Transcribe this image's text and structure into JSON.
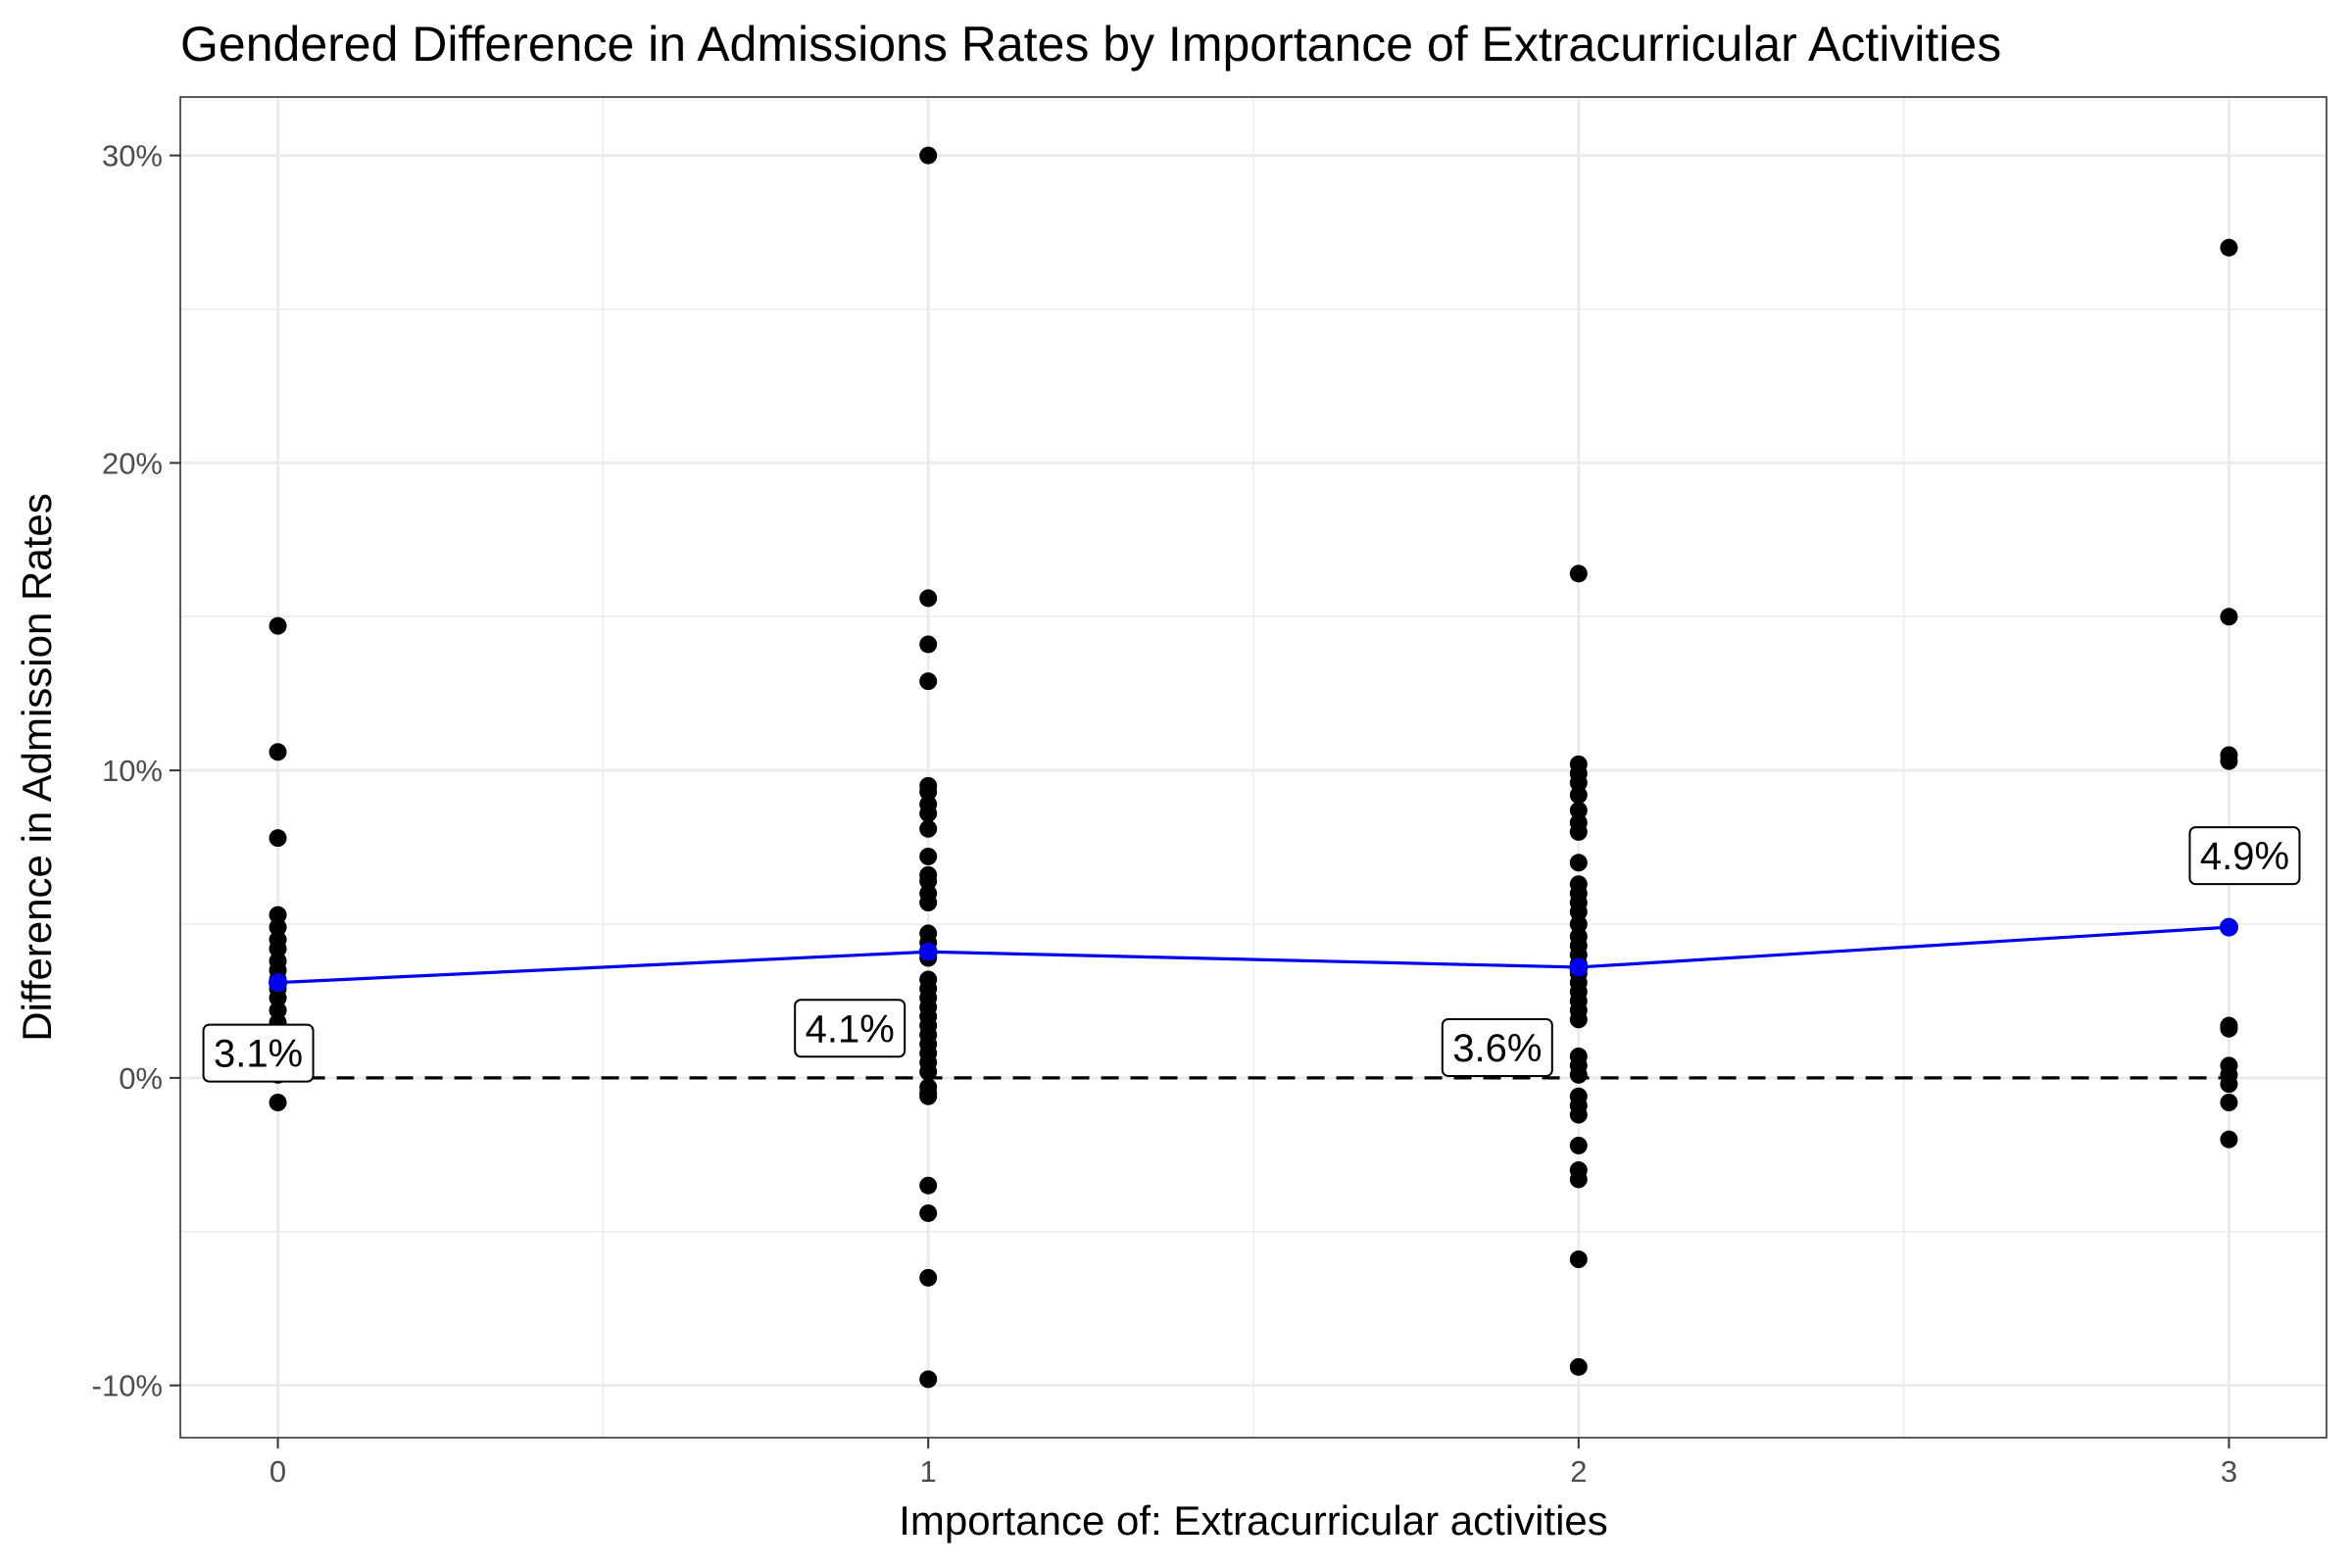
{
  "chart_data": {
    "type": "scatter",
    "title": "Gendered Difference in Admissions Rates by Importance of Extracurricular Activities",
    "xlabel": "Importance of: Extracurricular activities",
    "ylabel": "Difference in Admission Rates",
    "xlim": [
      -0.15,
      3.15
    ],
    "ylim": [
      -11.7,
      31.9
    ],
    "x_ticks": [
      0,
      1,
      2,
      3
    ],
    "x_tick_labels": [
      "0",
      "1",
      "2",
      "3"
    ],
    "y_ticks": [
      -10,
      0,
      10,
      20,
      30
    ],
    "y_tick_labels": [
      "-10%",
      "0%",
      "10%",
      "20%",
      "30%"
    ],
    "y_minor_ticks": [
      -5,
      5,
      15,
      25
    ],
    "x_minor_ticks": [
      0.5,
      1.5,
      2.5
    ],
    "grid": true,
    "reference_line": {
      "y": 0,
      "style": "dashed",
      "color": "#000000"
    },
    "point_color": "#000000",
    "mean_color": "#0000ee",
    "series": [
      {
        "x": 0,
        "values": [
          14.7,
          10.6,
          7.8,
          5.3,
          4.9,
          4.5,
          4.2,
          3.8,
          3.5,
          3.2,
          2.9,
          2.6,
          2.2,
          1.8,
          1.4,
          1.0,
          0.6,
          0.3,
          0.1,
          -0.8
        ]
      },
      {
        "x": 1,
        "values": [
          30.0,
          15.6,
          14.1,
          12.9,
          9.5,
          9.3,
          8.9,
          8.6,
          8.1,
          7.2,
          6.6,
          6.4,
          6.0,
          5.7,
          4.7,
          4.4,
          4.1,
          3.9,
          3.2,
          2.9,
          2.6,
          2.3,
          2.0,
          1.7,
          1.4,
          1.1,
          0.8,
          0.5,
          0.2,
          -0.3,
          -0.5,
          -0.6,
          -3.5,
          -4.4,
          -6.5,
          -9.8
        ]
      },
      {
        "x": 2,
        "values": [
          16.4,
          10.2,
          9.9,
          9.6,
          9.2,
          8.7,
          8.3,
          8.0,
          7.0,
          6.3,
          6.0,
          5.7,
          5.4,
          5.0,
          4.6,
          4.3,
          4.0,
          3.7,
          3.4,
          3.1,
          2.8,
          2.5,
          2.2,
          1.9,
          0.7,
          0.4,
          0.1,
          -0.6,
          -0.9,
          -1.2,
          -2.2,
          -3.0,
          -3.3,
          -5.9,
          -9.4
        ]
      },
      {
        "x": 3,
        "values": [
          27.0,
          15.0,
          10.5,
          10.3,
          1.7,
          1.6,
          0.4,
          0.1,
          -0.2,
          -0.8,
          -2.0
        ]
      }
    ],
    "means": [
      {
        "x": 0,
        "y": 3.1,
        "label": "3.1%"
      },
      {
        "x": 1,
        "y": 4.1,
        "label": "4.1%"
      },
      {
        "x": 2,
        "y": 3.6,
        "label": "3.6%"
      },
      {
        "x": 3,
        "y": 4.9,
        "label": "4.9%"
      }
    ]
  }
}
